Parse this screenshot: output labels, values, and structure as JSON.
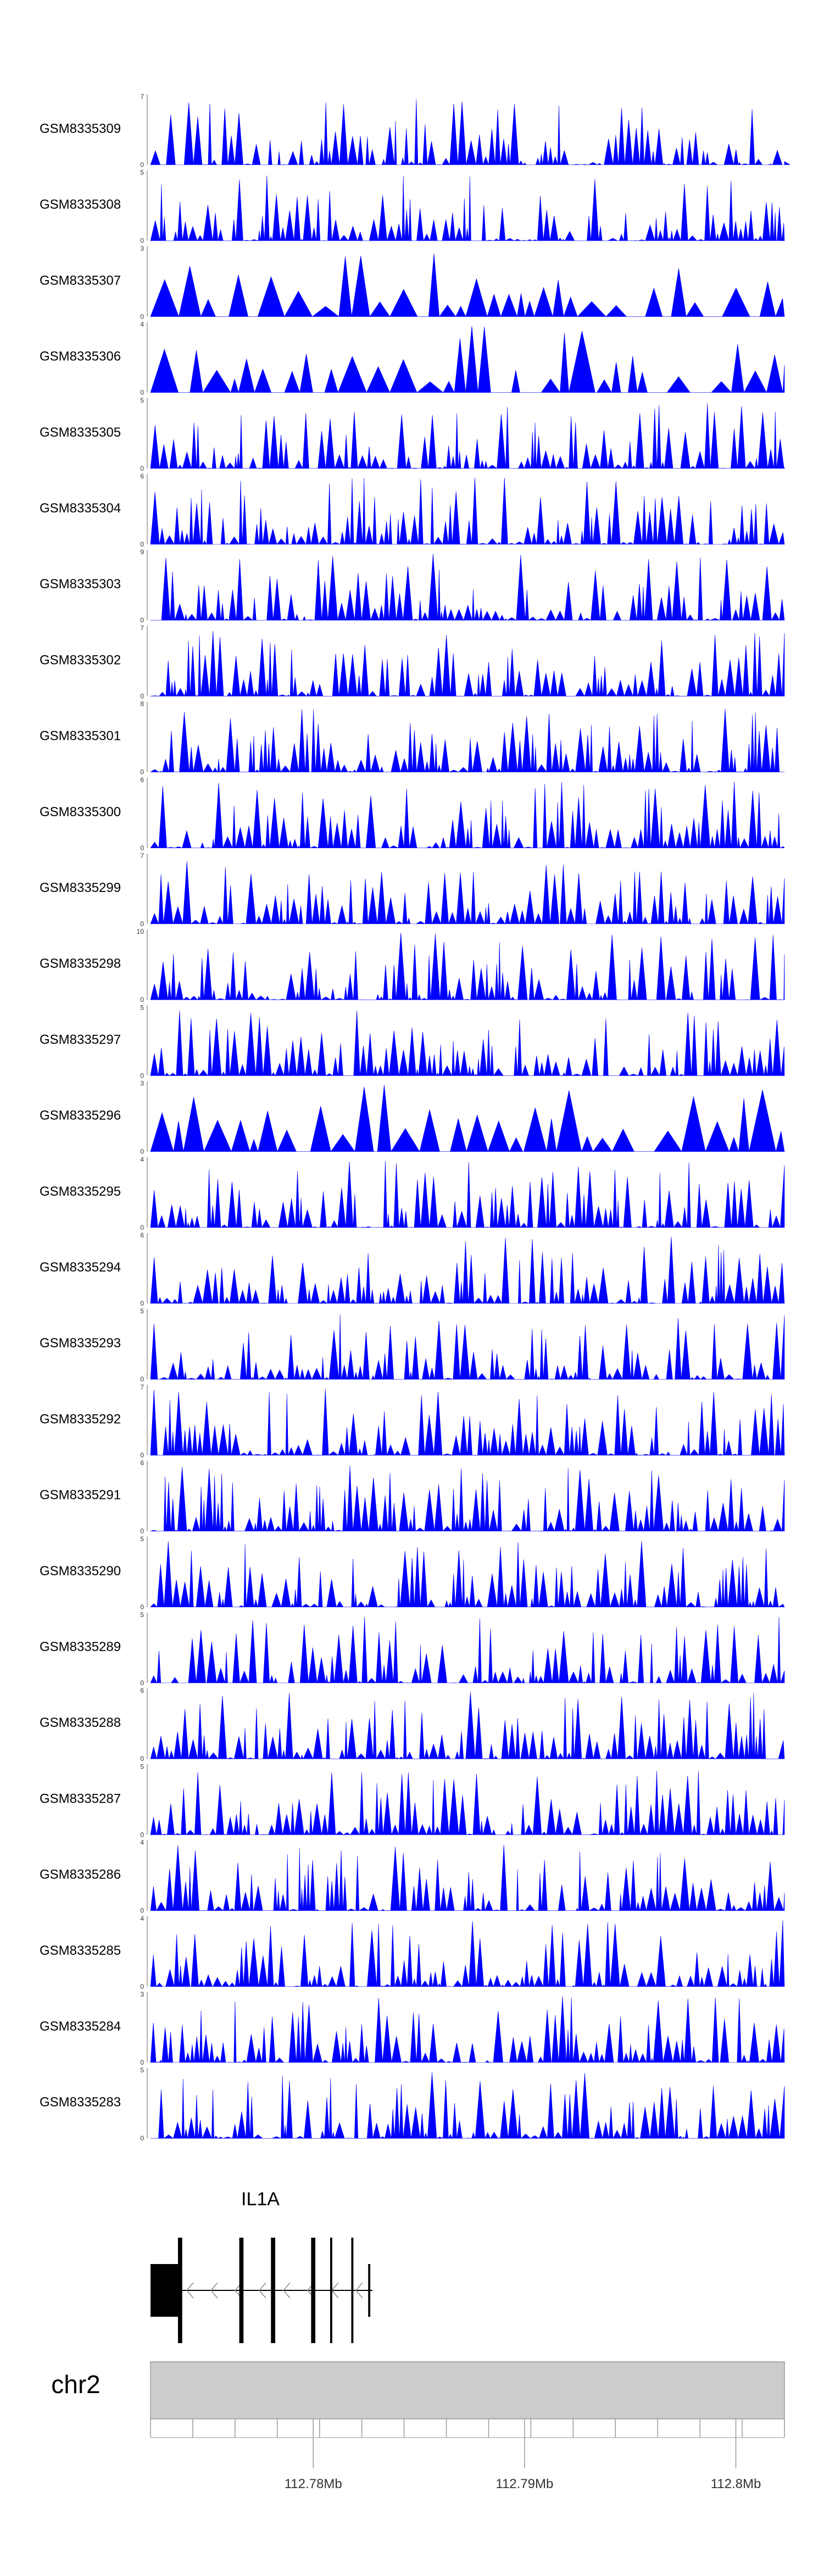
{
  "chart_data": {
    "type": "area",
    "track_color": "#0000ff",
    "tracks": [
      {
        "name": "GSM8335309",
        "ymax": "7",
        "ymin": "0",
        "seed": 309
      },
      {
        "name": "GSM8335308",
        "ymax": "5",
        "ymin": "0",
        "seed": 308
      },
      {
        "name": "GSM8335307",
        "ymax": "3",
        "ymin": "0",
        "seed": 307
      },
      {
        "name": "GSM8335306",
        "ymax": "4",
        "ymin": "0",
        "seed": 306
      },
      {
        "name": "GSM8335305",
        "ymax": "5",
        "ymin": "0",
        "seed": 305
      },
      {
        "name": "GSM8335304",
        "ymax": "6",
        "ymin": "0",
        "seed": 304
      },
      {
        "name": "GSM8335303",
        "ymax": "9",
        "ymin": "0",
        "seed": 303
      },
      {
        "name": "GSM8335302",
        "ymax": "7",
        "ymin": "0",
        "seed": 302
      },
      {
        "name": "GSM8335301",
        "ymax": "8",
        "ymin": "0",
        "seed": 301
      },
      {
        "name": "GSM8335300",
        "ymax": "6",
        "ymin": "0",
        "seed": 300
      },
      {
        "name": "GSM8335299",
        "ymax": "7",
        "ymin": "0",
        "seed": 299
      },
      {
        "name": "GSM8335298",
        "ymax": "10",
        "ymin": "0",
        "seed": 298
      },
      {
        "name": "GSM8335297",
        "ymax": "5",
        "ymin": "0",
        "seed": 297
      },
      {
        "name": "GSM8335296",
        "ymax": "3",
        "ymin": "0",
        "seed": 296
      },
      {
        "name": "GSM8335295",
        "ymax": "4",
        "ymin": "0",
        "seed": 295
      },
      {
        "name": "GSM8335294",
        "ymax": "6",
        "ymin": "0",
        "seed": 294
      },
      {
        "name": "GSM8335293",
        "ymax": "5",
        "ymin": "0",
        "seed": 293
      },
      {
        "name": "GSM8335292",
        "ymax": "7",
        "ymin": "0",
        "seed": 292
      },
      {
        "name": "GSM8335291",
        "ymax": "6",
        "ymin": "0",
        "seed": 291
      },
      {
        "name": "GSM8335290",
        "ymax": "5",
        "ymin": "0",
        "seed": 290
      },
      {
        "name": "GSM8335289",
        "ymax": "5",
        "ymin": "0",
        "seed": 289
      },
      {
        "name": "GSM8335288",
        "ymax": "6",
        "ymin": "0",
        "seed": 288
      },
      {
        "name": "GSM8335287",
        "ymax": "5",
        "ymin": "0",
        "seed": 287
      },
      {
        "name": "GSM8335286",
        "ymax": "4",
        "ymin": "0",
        "seed": 286
      },
      {
        "name": "GSM8335285",
        "ymax": "4",
        "ymin": "0",
        "seed": 285
      },
      {
        "name": "GSM8335284",
        "ymax": "3",
        "ymin": "0",
        "seed": 284
      },
      {
        "name": "GSM8335283",
        "ymax": "5",
        "ymin": "0",
        "seed": 283
      }
    ],
    "gene": {
      "name": "IL1A",
      "strand": "-",
      "exons_mb": [
        [
          112.7723,
          112.7736
        ],
        [
          112.7736,
          112.7738
        ],
        [
          112.7765,
          112.7767
        ],
        [
          112.778,
          112.7782
        ],
        [
          112.7799,
          112.7801
        ],
        [
          112.7808,
          112.7809
        ],
        [
          112.7818,
          112.7819
        ],
        [
          112.7826,
          112.7827
        ]
      ],
      "span_mb": [
        112.7723,
        112.7828
      ]
    },
    "ideogram": {
      "chromosome": "chr2",
      "color": "#cccccc"
    },
    "axis": {
      "xlim_mb": [
        112.7723,
        112.8023
      ],
      "minor_tick_step_mb": 0.002,
      "major_ticks": [
        {
          "value": 112.78,
          "label": "112.78Mb"
        },
        {
          "value": 112.79,
          "label": "112.79Mb"
        },
        {
          "value": 112.8,
          "label": "112.8Mb"
        }
      ]
    }
  }
}
